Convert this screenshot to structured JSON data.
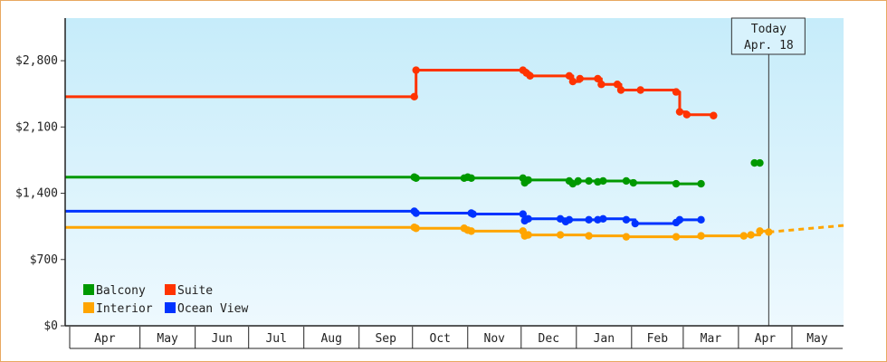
{
  "chart_data": {
    "type": "line",
    "subtype": "step",
    "y_axis": {
      "ticks": [
        0,
        700,
        1400,
        2100,
        2800
      ],
      "tick_labels": [
        "$0",
        "$700",
        "$1,400",
        "$2,100",
        "$2,800"
      ],
      "ylim": [
        0,
        3250
      ]
    },
    "x_axis": {
      "months": [
        "Apr",
        "May",
        "Jun",
        "Jul",
        "Aug",
        "Sep",
        "Oct",
        "Nov",
        "Dec",
        "Jan",
        "Feb",
        "Mar",
        "Apr",
        "May"
      ],
      "xlim": [
        "2023-03-20",
        "2024-05-30"
      ]
    },
    "today_marker": {
      "line1": "Today",
      "line2": "Apr. 18",
      "date": "2024-04-18"
    },
    "legend": {
      "placement": "bottom-left"
    },
    "series": [
      {
        "name": "Suite",
        "color": "#ff3300",
        "points": [
          [
            "2023-03-20",
            2420
          ],
          [
            "2023-10-02",
            2420
          ],
          [
            "2023-10-03",
            2700
          ],
          [
            "2023-12-02",
            2700
          ],
          [
            "2023-12-04",
            2670
          ],
          [
            "2023-12-06",
            2640
          ],
          [
            "2023-12-28",
            2640
          ],
          [
            "2023-12-30",
            2580
          ],
          [
            "2024-01-03",
            2610
          ],
          [
            "2024-01-13",
            2610
          ],
          [
            "2024-01-15",
            2550
          ],
          [
            "2024-01-24",
            2550
          ],
          [
            "2024-01-26",
            2490
          ],
          [
            "2024-02-06",
            2490
          ],
          [
            "2024-02-26",
            2470
          ],
          [
            "2024-02-28",
            2260
          ],
          [
            "2024-03-03",
            2230
          ],
          [
            "2024-03-18",
            2220
          ]
        ]
      },
      {
        "name": "Balcony",
        "color": "#009900",
        "points": [
          [
            "2023-03-20",
            1570
          ],
          [
            "2023-10-02",
            1570
          ],
          [
            "2023-10-03",
            1560
          ],
          [
            "2023-10-30",
            1560
          ],
          [
            "2023-11-01",
            1570
          ],
          [
            "2023-11-03",
            1560
          ],
          [
            "2023-12-02",
            1560
          ],
          [
            "2023-12-03",
            1510
          ],
          [
            "2023-12-05",
            1540
          ],
          [
            "2023-12-28",
            1530
          ],
          [
            "2023-12-30",
            1500
          ],
          [
            "2024-01-02",
            1530
          ],
          [
            "2024-01-08",
            1530
          ],
          [
            "2024-01-13",
            1520
          ],
          [
            "2024-01-16",
            1530
          ],
          [
            "2024-01-29",
            1530
          ],
          [
            "2024-02-02",
            1510
          ],
          [
            "2024-02-26",
            1500
          ],
          [
            "2024-03-11",
            1500
          ]
        ]
      },
      {
        "name": "Ocean View",
        "color": "#0033ff",
        "points": [
          [
            "2023-03-20",
            1210
          ],
          [
            "2023-10-02",
            1210
          ],
          [
            "2023-10-03",
            1190
          ],
          [
            "2023-11-03",
            1190
          ],
          [
            "2023-11-04",
            1180
          ],
          [
            "2023-12-02",
            1180
          ],
          [
            "2023-12-03",
            1110
          ],
          [
            "2023-12-05",
            1130
          ],
          [
            "2023-12-23",
            1130
          ],
          [
            "2023-12-26",
            1100
          ],
          [
            "2023-12-28",
            1120
          ],
          [
            "2024-01-08",
            1120
          ],
          [
            "2024-01-13",
            1120
          ],
          [
            "2024-01-16",
            1130
          ],
          [
            "2024-01-29",
            1120
          ],
          [
            "2024-02-03",
            1080
          ],
          [
            "2024-02-26",
            1090
          ],
          [
            "2024-02-28",
            1120
          ],
          [
            "2024-03-11",
            1120
          ]
        ]
      },
      {
        "name": "Interior",
        "color": "#ffa500",
        "points": [
          [
            "2023-03-20",
            1040
          ],
          [
            "2023-10-02",
            1040
          ],
          [
            "2023-10-03",
            1030
          ],
          [
            "2023-10-30",
            1030
          ],
          [
            "2023-11-01",
            1010
          ],
          [
            "2023-11-03",
            1000
          ],
          [
            "2023-12-02",
            1000
          ],
          [
            "2023-12-03",
            950
          ],
          [
            "2023-12-05",
            960
          ],
          [
            "2023-12-23",
            960
          ],
          [
            "2024-01-08",
            950
          ],
          [
            "2024-01-29",
            940
          ],
          [
            "2024-02-26",
            940
          ],
          [
            "2024-03-11",
            950
          ],
          [
            "2024-04-04",
            950
          ],
          [
            "2024-04-08",
            960
          ],
          [
            "2024-04-13",
            1000
          ],
          [
            "2024-04-18",
            990
          ]
        ]
      }
    ],
    "extra_markers": [
      {
        "series": "Balcony",
        "points": [
          [
            "2024-04-10",
            1720
          ],
          [
            "2024-04-13",
            1720
          ]
        ]
      }
    ],
    "projection": {
      "series": "Interior",
      "points": [
        [
          "2024-04-18",
          990
        ],
        [
          "2024-05-30",
          1060
        ]
      ]
    }
  }
}
